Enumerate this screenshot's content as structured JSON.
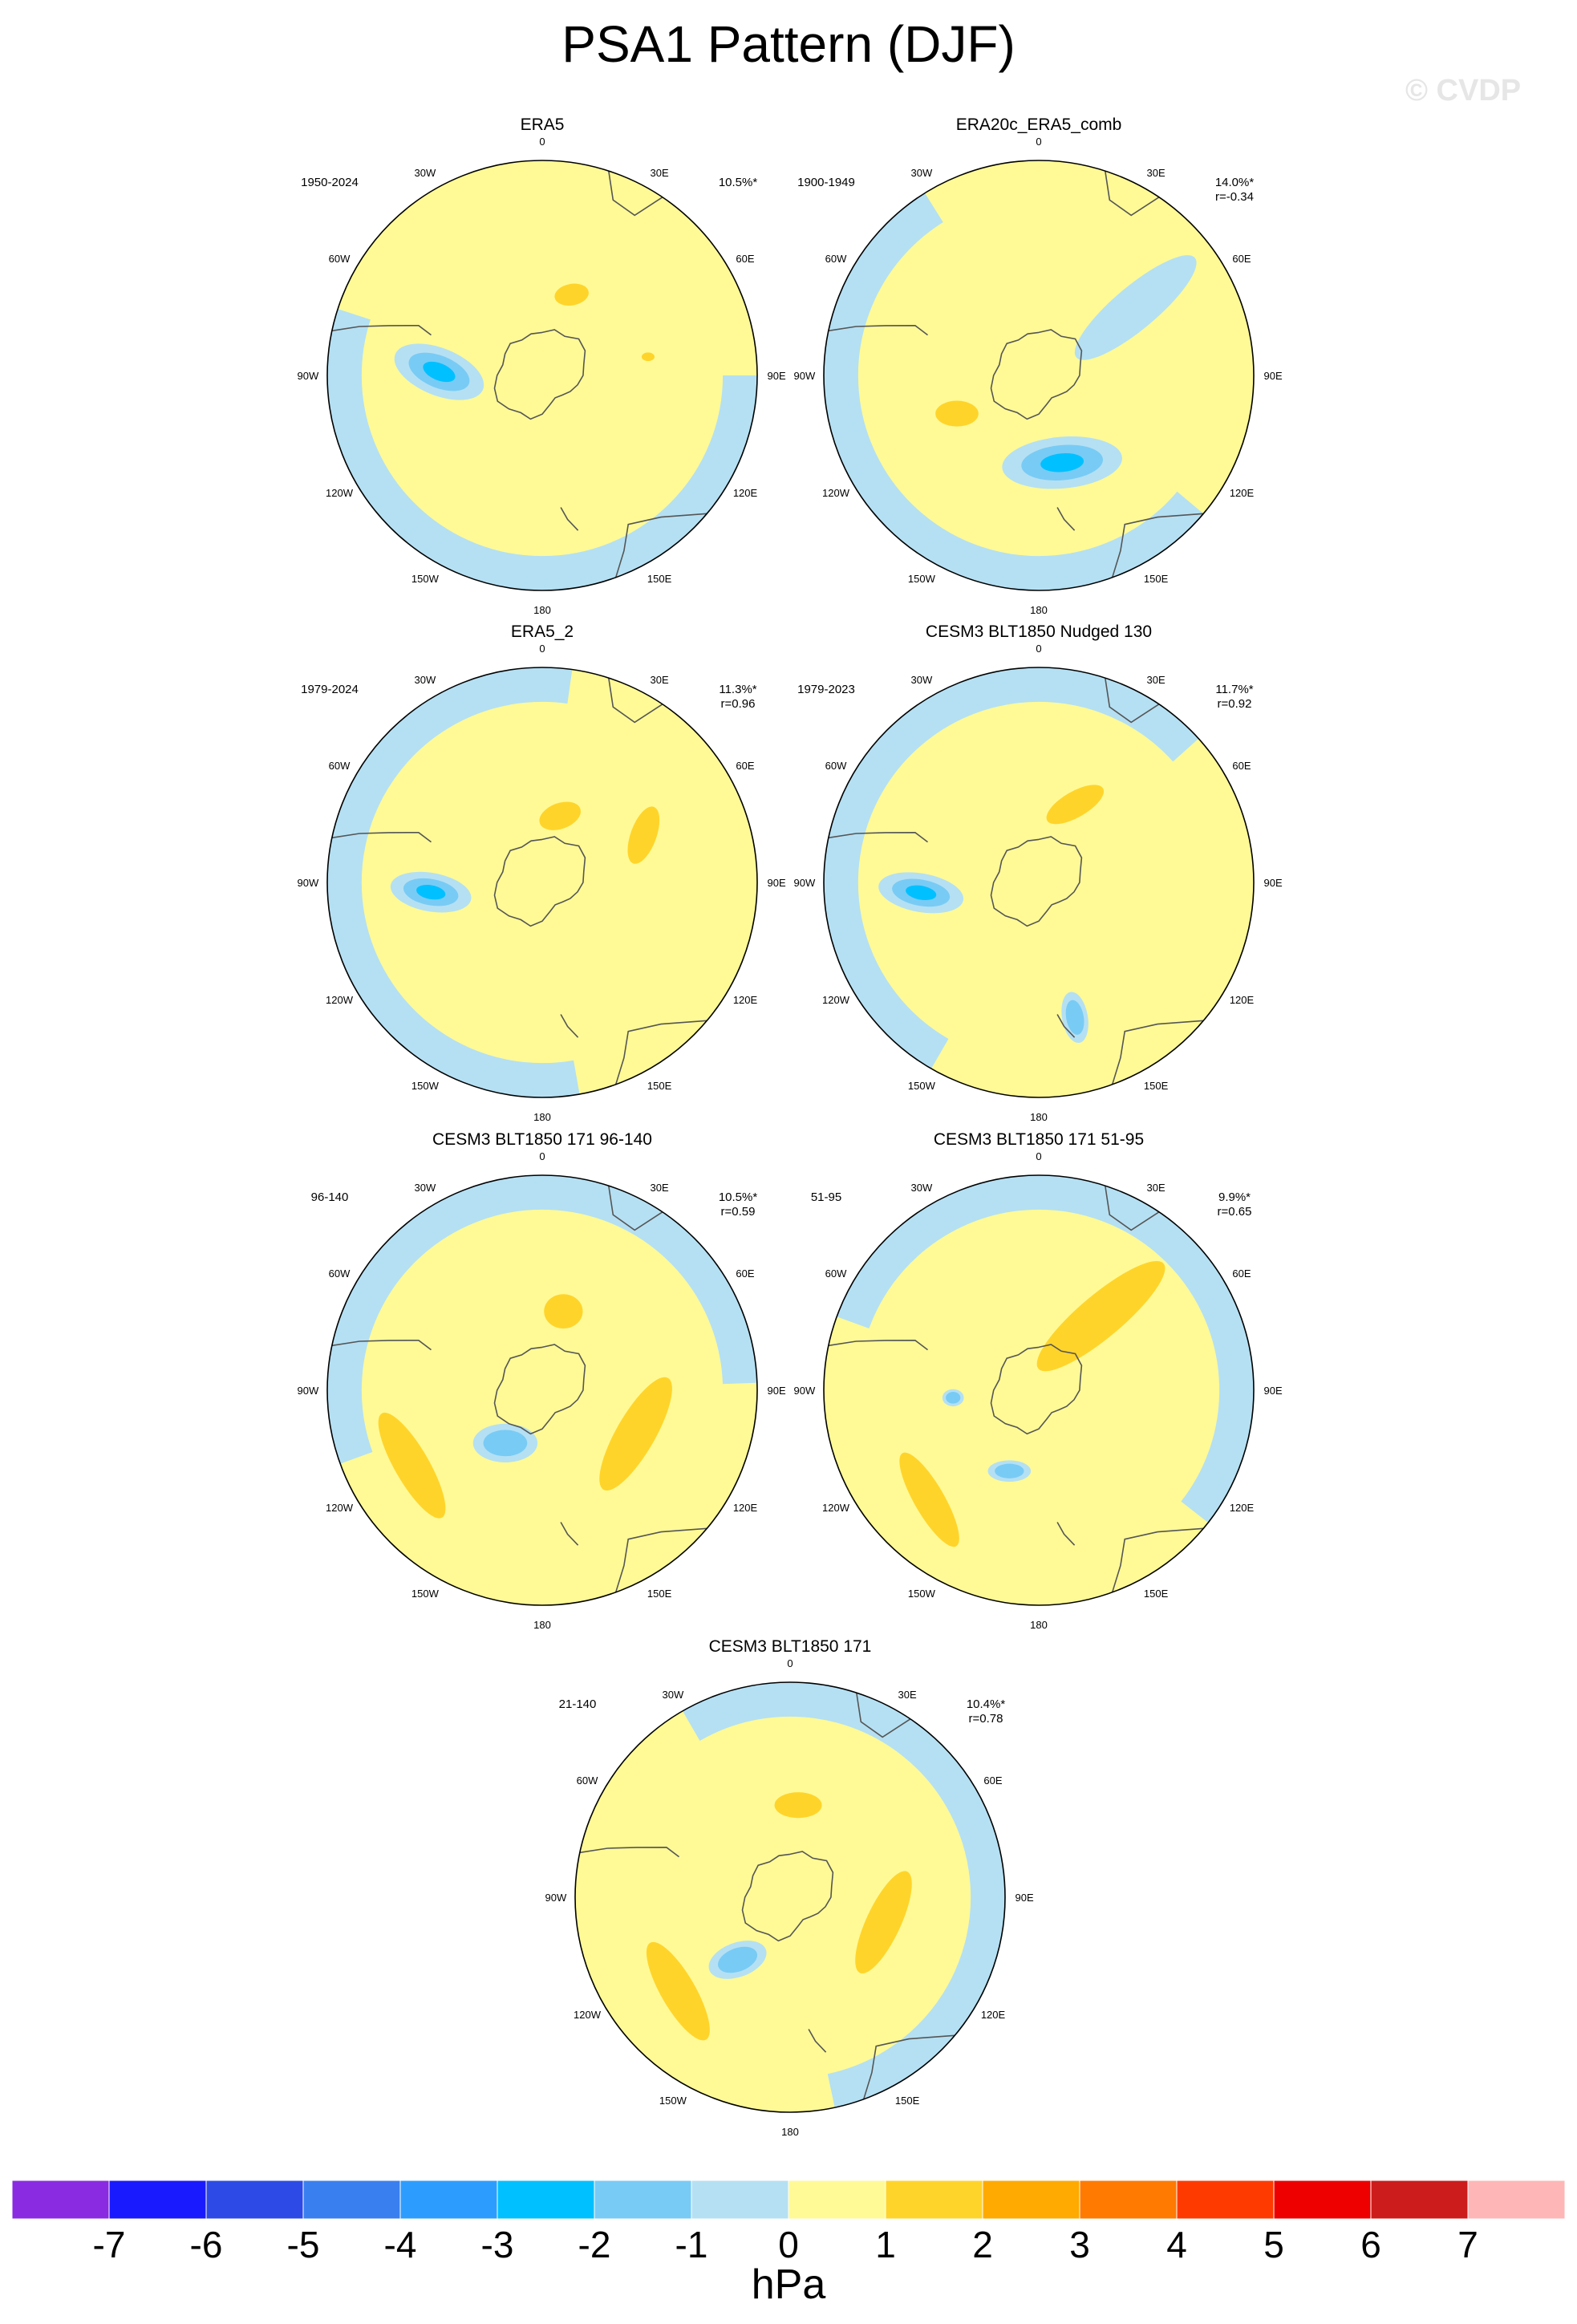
{
  "title": "PSA1 Pattern (DJF)",
  "watermark": "© CVDP",
  "lon_labels": [
    "0",
    "30E",
    "60E",
    "90E",
    "120E",
    "150E",
    "180",
    "150W",
    "120W",
    "90W",
    "60W",
    "30W"
  ],
  "panels": [
    {
      "name": "ERA5",
      "period": "1950-2024",
      "pct": "10.5%*",
      "corr": "",
      "features": [
        {
          "lon": -88,
          "r": 0.48,
          "rx": 0.22,
          "ry": 0.11,
          "rot": 22,
          "lvl": [
            -1,
            -2,
            -3
          ]
        },
        {
          "lon": 20,
          "r": 0.4,
          "rx": 0.08,
          "ry": 0.05,
          "rot": -10,
          "lvl": [
            1
          ]
        },
        {
          "lon": 80,
          "r": 0.5,
          "rx": 0.03,
          "ry": 0.02,
          "rot": 0,
          "lvl": [
            1
          ]
        }
      ]
    },
    {
      "name": "ERA20c_ERA5_comb",
      "period": "1900-1949",
      "pct": "14.0%*",
      "corr": "r=-0.34",
      "features": [
        {
          "lon": 165,
          "r": 0.42,
          "rx": 0.28,
          "ry": 0.12,
          "rot": -5,
          "lvl": [
            -1,
            -2,
            -3
          ]
        },
        {
          "lon": 55,
          "r": 0.55,
          "rx": 0.36,
          "ry": 0.1,
          "rot": -40,
          "lvl": [
            -1
          ]
        },
        {
          "lon": -115,
          "r": 0.42,
          "rx": 0.1,
          "ry": 0.06,
          "rot": 0,
          "lvl": [
            1
          ]
        }
      ]
    },
    {
      "name": "ERA5_2",
      "period": "1979-2024",
      "pct": "11.3%*",
      "corr": "r=0.96",
      "features": [
        {
          "lon": -95,
          "r": 0.52,
          "rx": 0.19,
          "ry": 0.09,
          "rot": 10,
          "lvl": [
            -1,
            -2,
            -3
          ]
        },
        {
          "lon": 15,
          "r": 0.32,
          "rx": 0.1,
          "ry": 0.06,
          "rot": -20,
          "lvl": [
            1
          ]
        },
        {
          "lon": 65,
          "r": 0.52,
          "rx": 0.14,
          "ry": 0.06,
          "rot": -70,
          "lvl": [
            1
          ]
        }
      ]
    },
    {
      "name": "CESM3 BLT1850 Nudged 130",
      "period": "1979-2023",
      "pct": "11.7%*",
      "corr": "r=0.92",
      "features": [
        {
          "lon": -95,
          "r": 0.55,
          "rx": 0.2,
          "ry": 0.09,
          "rot": 10,
          "lvl": [
            -1,
            -2,
            -3
          ]
        },
        {
          "lon": 25,
          "r": 0.4,
          "rx": 0.15,
          "ry": 0.06,
          "rot": -30,
          "lvl": [
            1
          ]
        },
        {
          "lon": 165,
          "r": 0.65,
          "rx": 0.12,
          "ry": 0.06,
          "rot": 80,
          "lvl": [
            -1,
            -2
          ]
        }
      ]
    },
    {
      "name": "CESM3 BLT1850 171 96-140",
      "period": "96-140",
      "pct": "10.5%*",
      "corr": "r=0.59",
      "features": [
        {
          "lon": -145,
          "r": 0.3,
          "rx": 0.15,
          "ry": 0.09,
          "rot": 0,
          "lvl": [
            -1,
            -2
          ]
        },
        {
          "lon": 15,
          "r": 0.38,
          "rx": 0.09,
          "ry": 0.08,
          "rot": 0,
          "lvl": [
            1
          ]
        },
        {
          "lon": 115,
          "r": 0.48,
          "rx": 0.3,
          "ry": 0.09,
          "rot": -60,
          "lvl": [
            1
          ]
        },
        {
          "lon": -120,
          "r": 0.7,
          "rx": 0.28,
          "ry": 0.08,
          "rot": 60,
          "lvl": [
            1
          ]
        }
      ]
    },
    {
      "name": "CESM3 BLT1850 171 51-95",
      "period": "51-95",
      "pct": "9.9%*",
      "corr": "r=0.65",
      "features": [
        {
          "lon": 40,
          "r": 0.45,
          "rx": 0.38,
          "ry": 0.1,
          "rot": -40,
          "lvl": [
            1
          ]
        },
        {
          "lon": -160,
          "r": 0.4,
          "rx": 0.1,
          "ry": 0.05,
          "rot": 0,
          "lvl": [
            -1,
            -2
          ]
        },
        {
          "lon": -95,
          "r": 0.4,
          "rx": 0.05,
          "ry": 0.04,
          "rot": 0,
          "lvl": [
            -1,
            -2
          ]
        },
        {
          "lon": -135,
          "r": 0.72,
          "rx": 0.25,
          "ry": 0.07,
          "rot": 60,
          "lvl": [
            1
          ]
        }
      ]
    },
    {
      "name": "CESM3 BLT1850 171",
      "period": "21-140",
      "pct": "10.4%*",
      "corr": "r=0.78",
      "features": [
        {
          "lon": -140,
          "r": 0.38,
          "rx": 0.14,
          "ry": 0.08,
          "rot": -20,
          "lvl": [
            -1,
            -2
          ]
        },
        {
          "lon": 5,
          "r": 0.43,
          "rx": 0.11,
          "ry": 0.06,
          "rot": 0,
          "lvl": [
            1
          ]
        },
        {
          "lon": 105,
          "r": 0.45,
          "rx": 0.26,
          "ry": 0.08,
          "rot": -65,
          "lvl": [
            1
          ]
        },
        {
          "lon": -130,
          "r": 0.68,
          "rx": 0.26,
          "ry": 0.08,
          "rot": 60,
          "lvl": [
            1
          ]
        }
      ]
    }
  ],
  "colorbar": {
    "labels": [
      "-7",
      "-6",
      "-5",
      "-4",
      "-3",
      "-2",
      "-1",
      "0",
      "1",
      "2",
      "3",
      "4",
      "5",
      "6",
      "7"
    ],
    "colors": [
      "#8a2be2",
      "#1a1aff",
      "#2d4ae6",
      "#3a7ff0",
      "#2d9cff",
      "#00c0ff",
      "#78cbf5",
      "#b5e0f3",
      "#fffa96",
      "#ffd42a",
      "#ffaa00",
      "#ff7a00",
      "#ff3a00",
      "#ee0000",
      "#cc1c1c",
      "#ffb6b6"
    ],
    "unit": "hPa"
  },
  "level_colors": {
    "-3": "#00c0ff",
    "-2": "#78cbf5",
    "-1": "#b5e0f3",
    "1": "#ffd42a",
    "0": "#fffa96"
  }
}
